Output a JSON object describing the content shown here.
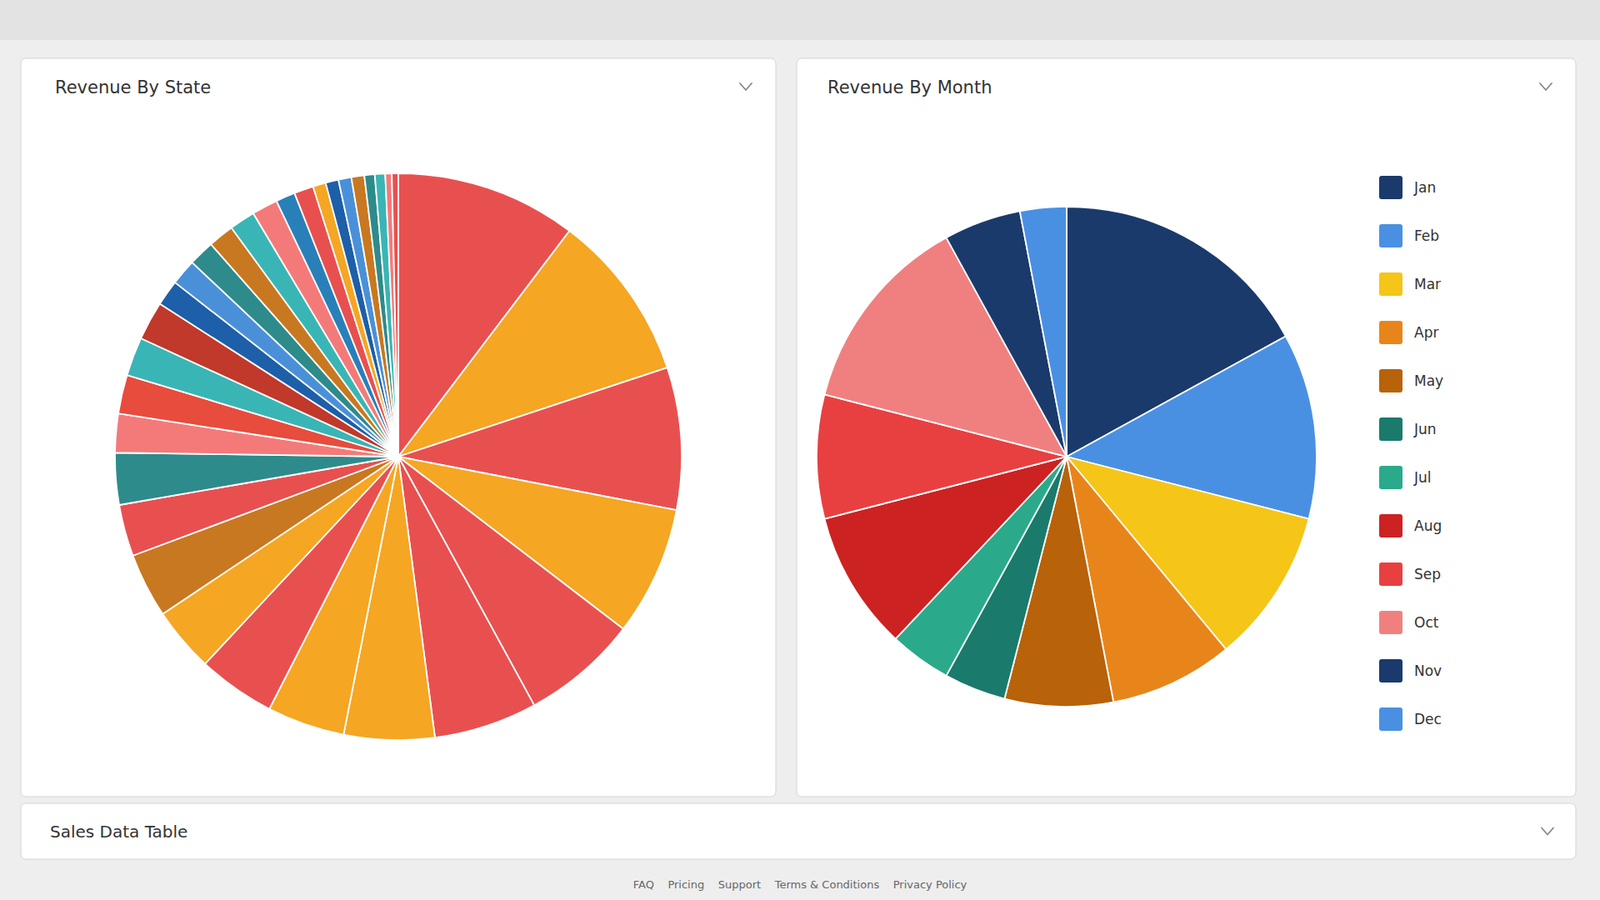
{
  "chart_data": [
    {
      "type": "pie",
      "title": "Revenue By State",
      "values": [
        14,
        13,
        11,
        10,
        9,
        8,
        7,
        6,
        6,
        5,
        5,
        4,
        4,
        3,
        3,
        3,
        3,
        2,
        2,
        2,
        2,
        2,
        2,
        1.5,
        1.5,
        1,
        1,
        1,
        1,
        0.8,
        0.8,
        0.5,
        0.5
      ],
      "colors": [
        "#e85050",
        "#f5a623",
        "#e85050",
        "#f5a623",
        "#e85050",
        "#e85050",
        "#f5a623",
        "#f5a623",
        "#e85050",
        "#f5a623",
        "#c87820",
        "#e85050",
        "#2e8b8b",
        "#f47a7a",
        "#e74c3c",
        "#3ab5b5",
        "#c0392b",
        "#1d5fa8",
        "#4a90d9",
        "#2e8b8b",
        "#c87820",
        "#3ab5b5",
        "#f47a7a",
        "#2980b9",
        "#e85050",
        "#f5a623",
        "#1d5fa8",
        "#4a90d9",
        "#c87820",
        "#2e8b8b",
        "#3ab5b5",
        "#f47a7a",
        "#e85050"
      ]
    },
    {
      "type": "pie",
      "title": "Revenue By Month",
      "categories": [
        "Jan",
        "Feb",
        "Mar",
        "Apr",
        "May",
        "Jun",
        "Jul",
        "Aug",
        "Sep",
        "Oct",
        "Nov",
        "Dec"
      ],
      "values": [
        17,
        12,
        10,
        8,
        7,
        4,
        4,
        9,
        8,
        13,
        5,
        3
      ],
      "colors": [
        "#1a3a6b",
        "#4a90e2",
        "#f5c518",
        "#e8851a",
        "#b8620a",
        "#1a7a6b",
        "#2aaa8a",
        "#cc2222",
        "#e84040",
        "#f08080",
        "#1a3a6b",
        "#4a90e2"
      ],
      "legend": "right"
    }
  ],
  "footer_text": "Sales Data Table",
  "footer_links": "FAQ    Pricing    Support    Terms & Conditions    Privacy Policy"
}
